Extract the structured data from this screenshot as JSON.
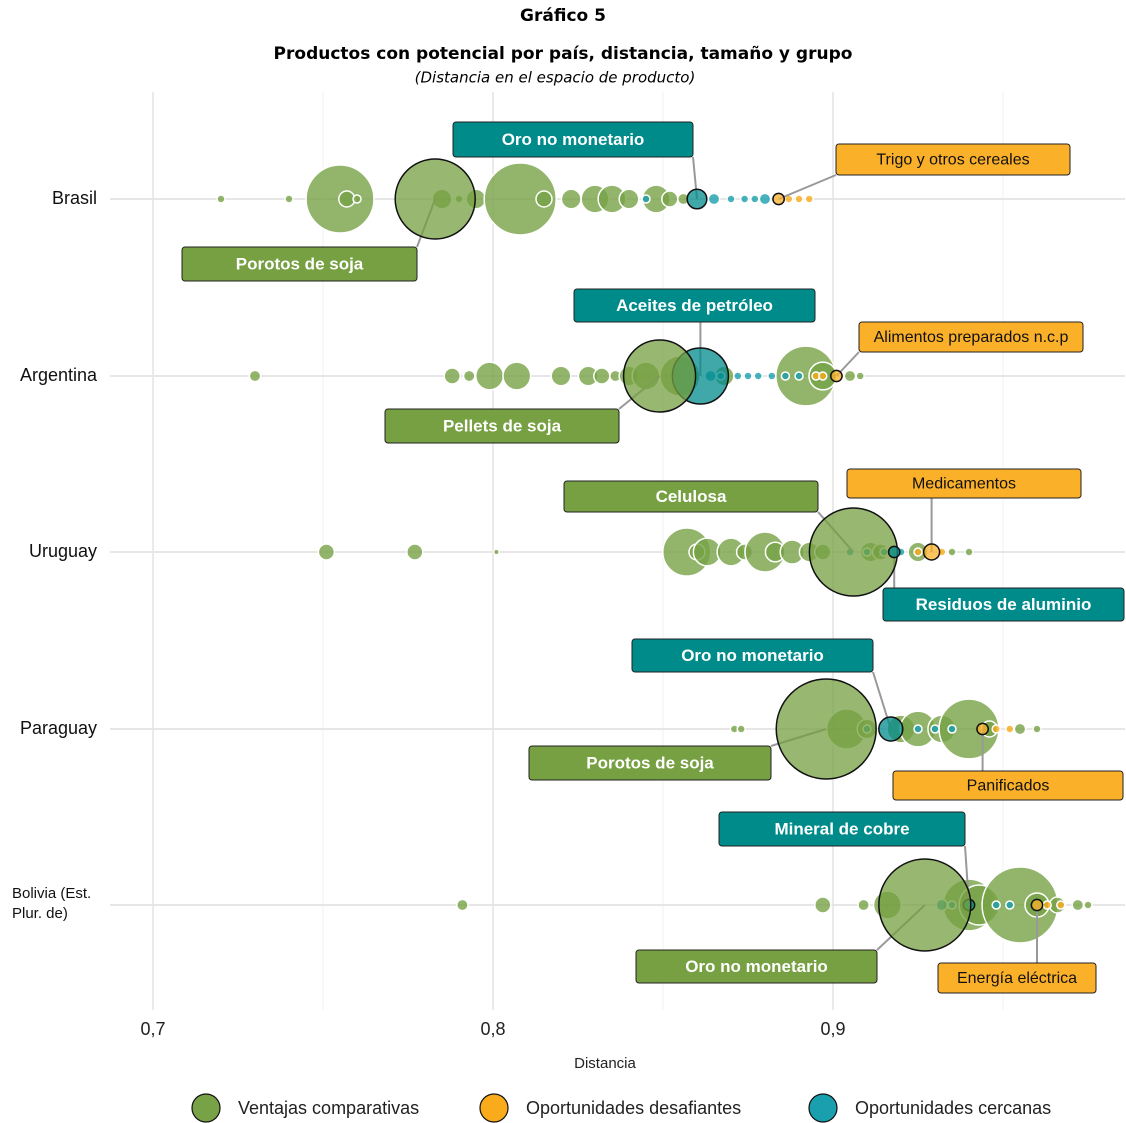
{
  "chart_data": {
    "type": "bubble",
    "title": "Gráfico 5",
    "subtitle": "Productos con potencial por país, distancia, tamaño y grupo",
    "note": "(Distancia en el espacio de producto)",
    "x_label": "Distancia",
    "categories": [
      "Brasil",
      "Argentina",
      "Uruguay",
      "Paraguay",
      "Bolivia (Est. Plur. de)"
    ],
    "xlim": [
      0.69,
      0.98
    ],
    "xticks": [
      {
        "value": 0.7,
        "label": "0,7"
      },
      {
        "value": 0.8,
        "label": "0,8"
      },
      {
        "value": 0.9,
        "label": "0,9"
      }
    ],
    "xminorticks": [
      0.75,
      0.85,
      0.95
    ],
    "grid": true,
    "legend": "bottom",
    "series": [
      {
        "name": "Ventajas comparativas",
        "color": "#77a346",
        "y": [
          "Brasil",
          "Brasil",
          "Brasil",
          "Brasil",
          "Brasil",
          "Brasil",
          "Brasil",
          "Brasil",
          "Brasil",
          "Brasil",
          "Brasil",
          "Brasil",
          "Brasil",
          "Brasil",
          "Brasil",
          "Brasil",
          "Brasil",
          "Argentina",
          "Argentina",
          "Argentina",
          "Argentina",
          "Argentina",
          "Argentina",
          "Argentina",
          "Argentina",
          "Argentina",
          "Argentina",
          "Argentina",
          "Argentina",
          "Argentina",
          "Argentina",
          "Argentina",
          "Argentina",
          "Argentina",
          "Uruguay",
          "Uruguay",
          "Uruguay",
          "Uruguay",
          "Uruguay",
          "Uruguay",
          "Uruguay",
          "Uruguay",
          "Uruguay",
          "Uruguay",
          "Uruguay",
          "Uruguay",
          "Uruguay",
          "Uruguay",
          "Uruguay",
          "Uruguay",
          "Uruguay",
          "Uruguay",
          "Paraguay",
          "Paraguay",
          "Paraguay",
          "Paraguay",
          "Paraguay",
          "Paraguay",
          "Paraguay",
          "Paraguay",
          "Paraguay",
          "Paraguay",
          "Paraguay",
          "Bolivia (Est. Plur. de)",
          "Bolivia (Est. Plur. de)",
          "Bolivia (Est. Plur. de)",
          "Bolivia (Est. Plur. de)",
          "Bolivia (Est. Plur. de)",
          "Bolivia (Est. Plur. de)",
          "Bolivia (Est. Plur. de)",
          "Bolivia (Est. Plur. de)",
          "Bolivia (Est. Plur. de)",
          "Bolivia (Est. Plur. de)",
          "Bolivia (Est. Plur. de)"
        ],
        "x": [
          0.72,
          0.74,
          0.755,
          0.757,
          0.76,
          0.785,
          0.79,
          0.795,
          0.808,
          0.815,
          0.823,
          0.83,
          0.835,
          0.84,
          0.848,
          0.852,
          0.856,
          0.73,
          0.788,
          0.793,
          0.799,
          0.807,
          0.82,
          0.828,
          0.832,
          0.836,
          0.84,
          0.845,
          0.855,
          0.868,
          0.892,
          0.897,
          0.905,
          0.908,
          0.751,
          0.777,
          0.801,
          0.857,
          0.86,
          0.863,
          0.87,
          0.874,
          0.88,
          0.883,
          0.888,
          0.893,
          0.897,
          0.911,
          0.914,
          0.925,
          0.935,
          0.94,
          0.871,
          0.873,
          0.904,
          0.91,
          0.92,
          0.925,
          0.932,
          0.94,
          0.946,
          0.955,
          0.96,
          0.791,
          0.897,
          0.909,
          0.916,
          0.94,
          0.943,
          0.955,
          0.96,
          0.966,
          0.972,
          0.975
        ],
        "size": [
          1,
          1,
          72,
          4,
          1,
          6,
          1,
          6,
          81,
          4,
          6,
          12,
          12,
          6,
          12,
          4,
          2,
          2,
          4,
          2,
          12,
          12,
          6,
          6,
          4,
          2,
          6,
          12,
          25,
          6,
          56,
          12,
          2,
          1,
          4,
          4,
          0.5,
          36,
          4,
          12,
          12,
          4,
          25,
          6,
          9,
          6,
          4,
          6,
          4,
          6,
          1,
          1,
          1,
          1,
          25,
          6,
          12,
          20,
          12,
          56,
          4,
          2,
          1,
          2,
          4,
          2,
          12,
          42,
          25,
          90,
          9,
          4,
          2,
          1
        ]
      },
      {
        "name": "Oportunidades desafiantes",
        "color": "#f9ab1c",
        "y": [
          "Brasil",
          "Brasil",
          "Brasil",
          "Argentina",
          "Argentina",
          "Uruguay",
          "Uruguay",
          "Paraguay",
          "Paraguay",
          "Bolivia (Est. Plur. de)",
          "Bolivia (Est. Plur. de)"
        ],
        "x": [
          0.887,
          0.89,
          0.893,
          0.895,
          0.897,
          0.925,
          0.932,
          0.948,
          0.952,
          0.963,
          0.967
        ],
        "size": [
          1,
          1,
          1,
          1,
          1,
          1,
          1,
          1,
          1,
          1,
          1
        ]
      },
      {
        "name": "Oportunidades cercanas",
        "color": "#1a9fae",
        "y": [
          "Brasil",
          "Brasil",
          "Brasil",
          "Brasil",
          "Brasil",
          "Brasil",
          "Argentina",
          "Argentina",
          "Argentina",
          "Argentina",
          "Argentina",
          "Argentina",
          "Argentina",
          "Argentina",
          "Uruguay",
          "Uruguay",
          "Uruguay",
          "Uruguay",
          "Paraguay",
          "Paraguay",
          "Paraguay",
          "Paraguay",
          "Bolivia (Est. Plur. de)",
          "Bolivia (Est. Plur. de)",
          "Bolivia (Est. Plur. de)",
          "Bolivia (Est. Plur. de)"
        ],
        "x": [
          0.845,
          0.865,
          0.87,
          0.874,
          0.877,
          0.88,
          0.864,
          0.867,
          0.872,
          0.875,
          0.878,
          0.882,
          0.886,
          0.89,
          0.905,
          0.91,
          0.915,
          0.92,
          0.91,
          0.925,
          0.93,
          0.935,
          0.932,
          0.935,
          0.948,
          0.952
        ],
        "size": [
          1,
          2,
          1,
          1,
          1,
          2,
          2,
          1,
          1,
          1,
          1,
          1,
          1,
          1,
          1,
          1,
          1,
          1,
          1,
          1,
          1,
          1,
          2,
          1,
          1,
          1
        ]
      }
    ],
    "annotations": [
      {
        "text": "Oro no monetario",
        "y": "Brasil",
        "x": 0.86,
        "size": 6,
        "color": "#008b8b"
      },
      {
        "text": "Trigo y otros cereales",
        "y": "Brasil",
        "x": 0.884,
        "size": 2,
        "color": "#fbb02a"
      },
      {
        "text": "Porotos de soja",
        "y": "Brasil",
        "x": 0.783,
        "size": 100,
        "color": "#76a042"
      },
      {
        "text": "Aceites de petróleo",
        "y": "Argentina",
        "x": 0.861,
        "size": 49,
        "color": "#008b8b"
      },
      {
        "text": "Alimentos preparados n.c.p",
        "y": "Argentina",
        "x": 0.901,
        "size": 2,
        "color": "#fbb02a"
      },
      {
        "text": "Pellets de soja",
        "y": "Argentina",
        "x": 0.849,
        "size": 81,
        "color": "#76a042"
      },
      {
        "text": "Celulosa",
        "y": "Uruguay",
        "x": 0.906,
        "size": 121,
        "color": "#76a042"
      },
      {
        "text": "Medicamentos",
        "y": "Uruguay",
        "x": 0.929,
        "size": 4,
        "color": "#fbb02a"
      },
      {
        "text": "Residuos de aluminio",
        "y": "Uruguay",
        "x": 0.918,
        "size": 2,
        "color": "#008b8b"
      },
      {
        "text": "Oro no monetario",
        "y": "Paraguay",
        "x": 0.917,
        "size": 9,
        "color": "#008b8b"
      },
      {
        "text": "Porotos de soja",
        "y": "Paraguay",
        "x": 0.898,
        "size": 156,
        "color": "#76a042"
      },
      {
        "text": "Panificados",
        "y": "Paraguay",
        "x": 0.944,
        "size": 2,
        "color": "#fbb02a"
      },
      {
        "text": "Mineral de cobre",
        "y": "Bolivia (Est. Plur. de)",
        "x": 0.94,
        "size": 2,
        "color": "#008b8b"
      },
      {
        "text": "Oro no monetario",
        "y": "Bolivia (Est. Plur. de)",
        "x": 0.927,
        "size": 132,
        "color": "#76a042"
      },
      {
        "text": "Energía eléctrica",
        "y": "Bolivia (Est. Plur. de)",
        "x": 0.96,
        "size": 2,
        "color": "#fbb02a"
      }
    ]
  }
}
